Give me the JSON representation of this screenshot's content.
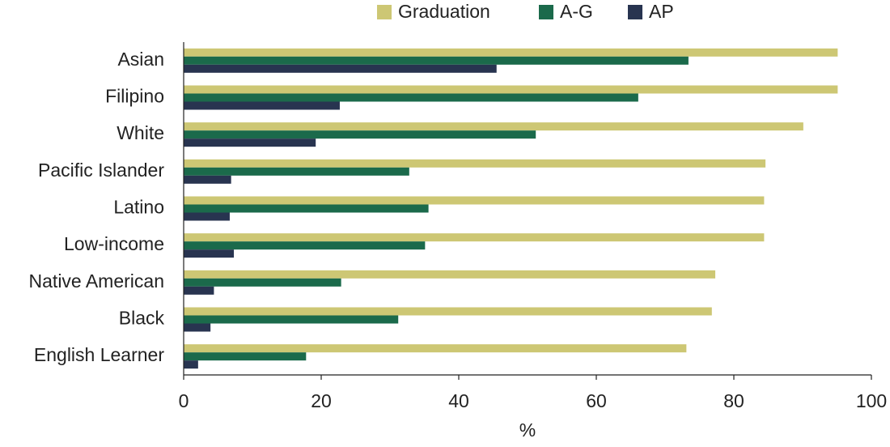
{
  "chart_data": {
    "type": "bar",
    "orientation": "horizontal",
    "x_label": "%",
    "categories": [
      "Asian",
      "Filipino",
      "White",
      "Pacific Islander",
      "Latino",
      "Low-income",
      "Native American",
      "Black",
      "English Learner"
    ],
    "series": [
      {
        "name": "Graduation",
        "color": "#cdc774",
        "values": [
          95.1,
          95.1,
          90.1,
          84.6,
          84.4,
          84.4,
          77.3,
          76.8,
          73.1
        ]
      },
      {
        "name": "A-G",
        "color": "#1b6a4b",
        "values": [
          73.4,
          66.1,
          51.2,
          32.8,
          35.6,
          35.1,
          22.9,
          31.2,
          17.8
        ]
      },
      {
        "name": "AP",
        "color": "#283450",
        "values": [
          45.5,
          22.7,
          19.2,
          6.9,
          6.7,
          7.3,
          4.4,
          3.9,
          2.1
        ]
      }
    ],
    "xlim": [
      0,
      100
    ],
    "xticks": [
      0,
      20,
      40,
      60,
      80,
      100
    ],
    "legend": "top"
  }
}
